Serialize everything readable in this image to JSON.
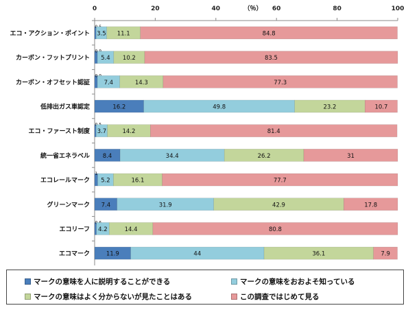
{
  "chart_data": {
    "type": "bar",
    "orientation": "horizontal",
    "stacked": true,
    "unit_label": "（％）",
    "xlim": [
      0,
      100
    ],
    "x_ticks": [
      "0",
      "20",
      "40",
      "60",
      "80",
      "100"
    ],
    "categories": [
      "エコ・アクション・ポイント",
      "カーボン・フットプリント",
      "カーボン・オフセット認証",
      "低排出ガス車認定",
      "エコ・ファースト制度",
      "統一省エネラベル",
      "エコレールマーク",
      "グリーンマーク",
      "エコリーフ",
      "エコマーク"
    ],
    "series": [
      {
        "name": "マークの意味を人に説明することができる",
        "color": "#4a7ebb",
        "values": [
          0.5,
          0.9,
          0.9,
          16.2,
          0.5,
          8.4,
          1,
          7.4,
          0.6,
          11.9
        ],
        "labels": [
          "0.5",
          "0.9",
          "0.9",
          "16.2",
          "0.5",
          "8.4",
          "1",
          "7.4",
          "0.6",
          "11.9"
        ]
      },
      {
        "name": "マークの意味をおおよそ知っている",
        "color": "#93cddd",
        "values": [
          3.5,
          5.4,
          7.4,
          49.8,
          3.7,
          34.4,
          5.2,
          31.9,
          4.2,
          44
        ],
        "labels": [
          "3.5",
          "5.4",
          "7.4",
          "49.8",
          "3.7",
          "34.4",
          "5.2",
          "31.9",
          "4.2",
          "44"
        ]
      },
      {
        "name": "マークの意味はよく分からないが見たことはある",
        "color": "#c3d69b",
        "values": [
          11.1,
          10.2,
          14.3,
          23.2,
          14.2,
          26.2,
          16.1,
          42.9,
          14.4,
          36.1
        ],
        "labels": [
          "11.1",
          "10.2",
          "14.3",
          "23.2",
          "14.2",
          "26.2",
          "16.1",
          "42.9",
          "14.4",
          "36.1"
        ]
      },
      {
        "name": "この調査ではじめて見る",
        "color": "#e6999a",
        "values": [
          84.8,
          83.5,
          77.3,
          10.7,
          81.4,
          31,
          77.7,
          17.8,
          80.8,
          7.9
        ],
        "labels": [
          "84.8",
          "83.5",
          "77.3",
          "10.7",
          "81.4",
          "31",
          "77.7",
          "17.8",
          "80.8",
          "7.9"
        ]
      }
    ],
    "legend_position": "bottom",
    "grid": false
  }
}
